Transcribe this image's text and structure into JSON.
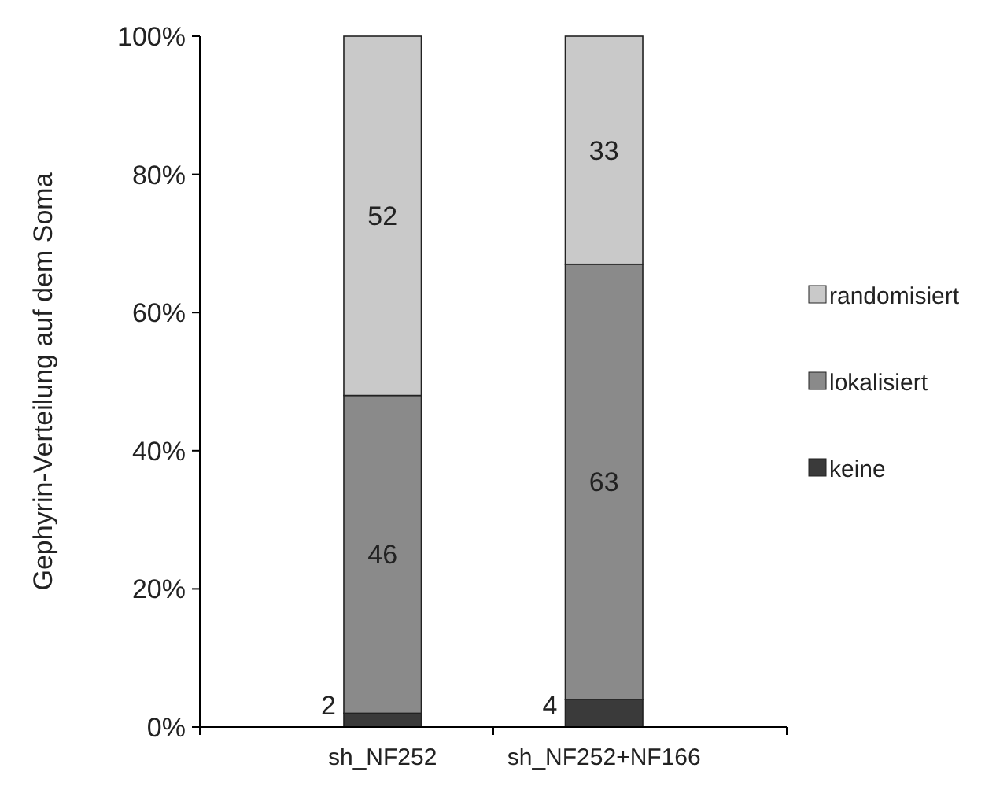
{
  "chart_data": {
    "type": "bar",
    "stacked": true,
    "ylabel": "Gephyrin-Verteilung auf dem Soma",
    "categories": [
      "sh_NF252",
      "sh_NF252+NF166"
    ],
    "series": [
      {
        "name": "keine",
        "color": "#3a3a3a",
        "values": [
          2,
          4
        ]
      },
      {
        "name": "lokalisiert",
        "color": "#8a8a8a",
        "values": [
          46,
          63
        ]
      },
      {
        "name": "randomisiert",
        "color": "#c9c9c9",
        "values": [
          52,
          33
        ]
      }
    ],
    "ylim": [
      0,
      100
    ],
    "yticks": [
      {
        "value": 0,
        "label": "0%"
      },
      {
        "value": 20,
        "label": "20%"
      },
      {
        "value": 40,
        "label": "40%"
      },
      {
        "value": 60,
        "label": "60%"
      },
      {
        "value": 80,
        "label": "80%"
      },
      {
        "value": 100,
        "label": "100%"
      }
    ],
    "data_labels": true,
    "legend": "right",
    "grid": false
  }
}
